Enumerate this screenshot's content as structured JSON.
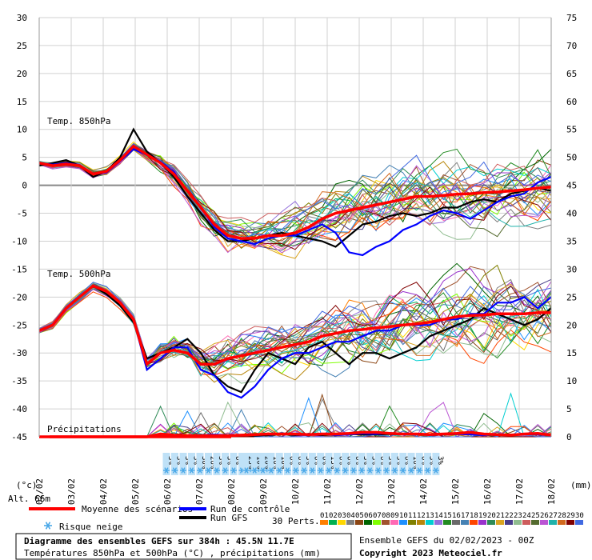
{
  "chart_data": {
    "type": "line",
    "left_axis": {
      "unit": "(°c)",
      "ticks": [
        30,
        25,
        20,
        15,
        10,
        5,
        0,
        -5,
        -10,
        -15,
        -20,
        -25,
        -30,
        -35,
        -40,
        -45
      ],
      "range": [
        -45,
        30
      ]
    },
    "right_axis": {
      "unit": "(mm)",
      "ticks": [
        75,
        70,
        65,
        60,
        55,
        50,
        45,
        40,
        35,
        30,
        25,
        20,
        15,
        10,
        5,
        0
      ],
      "range": [
        0,
        75
      ]
    },
    "x_labels": [
      "02/02",
      "03/02",
      "04/02",
      "05/02",
      "06/02",
      "07/02",
      "08/02",
      "09/02",
      "10/02",
      "11/02",
      "12/02",
      "13/02",
      "14/02",
      "15/02",
      "16/02",
      "17/02",
      "18/02"
    ],
    "panel_labels": {
      "t850": "Temp. 850hPa",
      "t500": "Temp. 500hPa",
      "precip": "Précipitations"
    },
    "altitude": "Alt. 66m",
    "grid": true,
    "series": [
      {
        "name": "Moyenne des scénarios",
        "color": "#ff0000",
        "t850": [
          4,
          3.5,
          3.8,
          3.5,
          2,
          2.5,
          4.5,
          7,
          5.5,
          4,
          2,
          -1,
          -4,
          -7,
          -9,
          -9.5,
          -9.5,
          -9,
          -9,
          -8.5,
          -7.5,
          -6,
          -5,
          -4.5,
          -4,
          -3.5,
          -3,
          -2.5,
          -2,
          -2,
          -1.8,
          -1.6,
          -1.5,
          -1.3,
          -1.2,
          -1,
          -0.8,
          -0.5,
          -0.3
        ],
        "t500": [
          -26,
          -25,
          -22,
          -20,
          -18,
          -19,
          -21,
          -24,
          -32,
          -30,
          -29.5,
          -30,
          -32,
          -32,
          -31,
          -30.5,
          -30,
          -29.5,
          -29,
          -28.5,
          -28,
          -27,
          -26.5,
          -26,
          -25.8,
          -25.5,
          -25.3,
          -25,
          -24.8,
          -24.5,
          -24,
          -23.5,
          -23.3,
          -23.2,
          -23,
          -23,
          -23,
          -22.8,
          -22.8
        ],
        "precip": [
          0,
          0,
          0,
          0,
          0,
          0,
          0,
          0,
          0,
          0.5,
          0.3,
          0.2,
          0.2,
          0.2,
          0.2,
          0.3,
          0.4,
          0.5,
          0.5,
          0.5,
          0.4,
          0.5,
          0.5,
          0.6,
          0.8,
          0.8,
          0.6,
          0.5,
          0.5,
          0.4,
          0.5,
          0.6,
          0.8,
          0.5,
          0.4,
          0.3,
          0.5,
          0.6,
          0.3
        ]
      },
      {
        "name": "Run de contrôle",
        "color": "#0000ff",
        "t850": [
          4,
          3.7,
          4,
          3.6,
          2,
          2.3,
          4.3,
          6.5,
          5.4,
          4.2,
          2.4,
          -1,
          -4,
          -7.5,
          -9.5,
          -10,
          -10.5,
          -9.5,
          -9,
          -9,
          -8,
          -7,
          -8.5,
          -12,
          -12.5,
          -11,
          -10,
          -8,
          -7,
          -5.5,
          -4.5,
          -5,
          -6,
          -4.5,
          -3,
          -2,
          -1.5,
          0.5,
          1.5
        ],
        "t500": [
          -26,
          -25,
          -22,
          -20,
          -18,
          -19,
          -21,
          -24,
          -33,
          -31,
          -29,
          -29,
          -33,
          -34,
          -37,
          -38,
          -36,
          -33,
          -31,
          -30,
          -30,
          -29,
          -28,
          -28,
          -27,
          -26,
          -26,
          -25,
          -25,
          -25,
          -24,
          -24,
          -23,
          -23,
          -21,
          -21,
          -20,
          -22,
          -20
        ],
        "precip": [
          0,
          0,
          0,
          0,
          0,
          0,
          0,
          0,
          0,
          0.4,
          0.2,
          0.2,
          0.3,
          0.4,
          0.3,
          0.3,
          0.4,
          0.4,
          0.6,
          0.4,
          0.3,
          0.5,
          0.3,
          0.4,
          0.6,
          0.5,
          0.7,
          0.4,
          0.4,
          0.3,
          0.4,
          0.5,
          0.4,
          0.3,
          0.4,
          0.3,
          0.5,
          0.4,
          0.3
        ]
      },
      {
        "name": "Run GFS",
        "color": "#000000",
        "t850": [
          3.5,
          4,
          4.5,
          3.5,
          1.5,
          2.5,
          5,
          10,
          6,
          4,
          1.5,
          -2,
          -5,
          -8,
          -10,
          -10,
          -9.5,
          -9,
          -8.5,
          -9,
          -9.5,
          -10,
          -11,
          -9,
          -7,
          -6.5,
          -5.5,
          -5,
          -5.5,
          -5,
          -4,
          -4,
          -3,
          -2.5,
          -3,
          -1.5,
          -1,
          -0.5,
          -1
        ],
        "t500": [
          -26,
          -25,
          -22,
          -20,
          -18,
          -19.5,
          -21.5,
          -24.5,
          -31,
          -30,
          -29,
          -27.5,
          -30,
          -34,
          -36,
          -37,
          -33,
          -30,
          -31,
          -32,
          -29,
          -28,
          -30,
          -32,
          -30,
          -30,
          -31,
          -30,
          -29,
          -27,
          -26,
          -25,
          -24,
          -22,
          -23,
          -24,
          -25,
          -24,
          -22
        ],
        "precip": [
          0,
          0,
          0,
          0,
          0,
          0,
          0,
          0,
          0,
          0.2,
          0.1,
          0.2,
          0.3,
          0.2,
          0.3,
          0.3,
          0.2,
          0.3,
          0.5,
          0.3,
          0.4,
          0.3,
          0.4,
          0.5,
          0.4,
          0.4,
          0.5,
          0.4,
          0.5,
          0.3,
          0.4,
          0.5,
          0.6,
          0.4,
          0.3,
          0.4,
          0.5,
          0.4,
          0.3
        ]
      }
    ],
    "snow_risk": [
      "3%",
      "3%",
      "3%",
      "3%",
      "30%",
      "26%",
      "3%",
      "3%",
      "6%",
      "3%",
      "6%",
      "6%",
      "10%",
      "23%",
      "10%",
      "20%",
      "10%",
      "10%",
      "6%",
      "6%",
      "3%",
      "6%",
      "6%",
      "13%",
      "6%",
      "6%",
      "6%",
      "3%",
      "3%",
      "6%",
      "3%",
      "3%",
      "6%",
      "10%",
      "6%",
      "3%",
      "3%"
    ],
    "member_count": "30 Perts.",
    "member_codes": [
      "01",
      "02",
      "03",
      "04",
      "05",
      "06",
      "07",
      "08",
      "09",
      "10",
      "11",
      "12",
      "13",
      "14",
      "15",
      "16",
      "17",
      "18",
      "19",
      "20",
      "21",
      "22",
      "23",
      "24",
      "25",
      "26",
      "27",
      "28",
      "29",
      "30"
    ],
    "member_colors": [
      "#ff7f00",
      "#00b050",
      "#ffd700",
      "#808080",
      "#8b4513",
      "#006400",
      "#7fff00",
      "#a0522d",
      "#ff69b4",
      "#1e90ff",
      "#808000",
      "#b8860b",
      "#00ced1",
      "#9370db",
      "#228b22",
      "#696969",
      "#4682b4",
      "#ff4500",
      "#9932cc",
      "#2e8b57",
      "#daa520",
      "#483d8b",
      "#8fbc8f",
      "#cd5c5c",
      "#556b2f",
      "#ba55d3",
      "#20b2aa",
      "#d2691e",
      "#800000",
      "#4169e1"
    ]
  },
  "legend": {
    "mean": "Moyenne des scénarios",
    "control": "Run de contrôle",
    "gfs": "Run GFS",
    "snow": "Risque neige"
  },
  "footer": {
    "title": "Diagramme des ensembles GEFS sur 384h : 45.5N 11.7E",
    "subtitle": "Températures 850hPa et 500hPa (°C) , précipitations (mm)",
    "run": "Ensemble GEFS du 02/02/2023 - 00Z",
    "copyright": "Copyright 2023 Meteociel.fr"
  }
}
